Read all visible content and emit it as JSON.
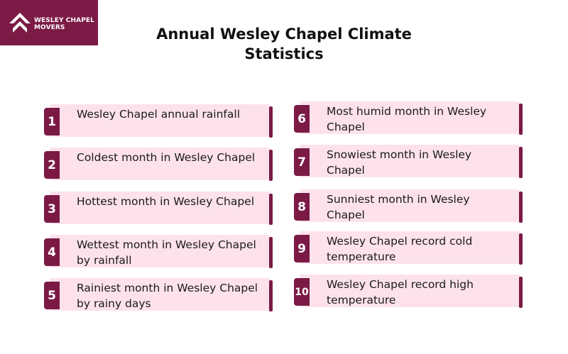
{
  "brand": {
    "name_line1": "WESLEY CHAPEL",
    "name_line2": "MOVERS",
    "logo_icon": "house-chevron-icon"
  },
  "title": {
    "line1": "Annual Wesley Chapel Climate",
    "line2": "Statistics"
  },
  "items": [
    {
      "number": "1",
      "label": "Wesley Chapel annual rainfall"
    },
    {
      "number": "2",
      "label": "Coldest month in Wesley Chapel"
    },
    {
      "number": "3",
      "label": "Hottest month in Wesley Chapel"
    },
    {
      "number": "4",
      "label": "Wettest month in Wesley Chapel by rainfall"
    },
    {
      "number": "5",
      "label": "Rainiest month in Wesley Chapel by rainy days"
    },
    {
      "number": "6",
      "label": "Most humid month in Wesley Chapel"
    },
    {
      "number": "7",
      "label": "Snowiest month in Wesley Chapel"
    },
    {
      "number": "8",
      "label": "Sunniest month in Wesley Chapel"
    },
    {
      "number": "9",
      "label": "Wesley Chapel record cold temperature"
    },
    {
      "number": "10",
      "label": "Wesley Chapel record high temperature"
    }
  ],
  "colors": {
    "brand": "#7b1a45",
    "card_background": "#fde2eb",
    "text": "#1a1a1a"
  }
}
